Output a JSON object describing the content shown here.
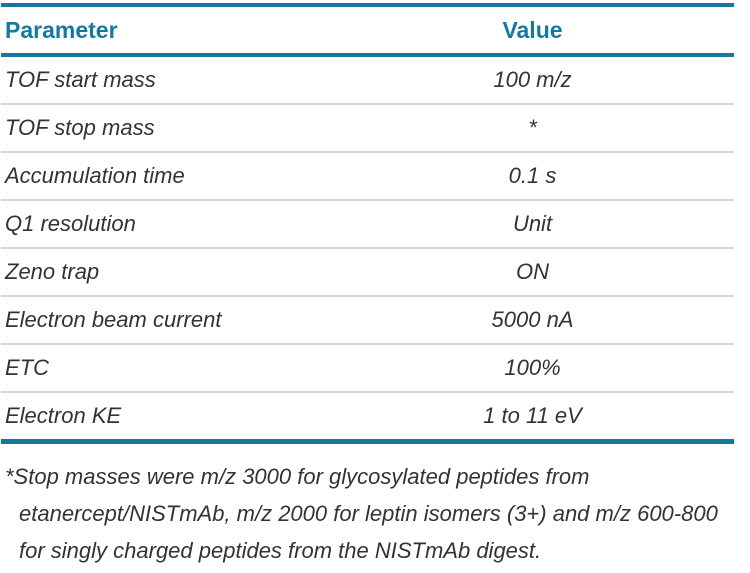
{
  "table": {
    "columns": [
      {
        "label": "Parameter"
      },
      {
        "label": "Value"
      }
    ],
    "rows": [
      {
        "parameter": "TOF start mass",
        "value": "100 m/z"
      },
      {
        "parameter": "TOF stop mass",
        "value": "*"
      },
      {
        "parameter": "Accumulation time",
        "value": "0.1 s"
      },
      {
        "parameter": "Q1 resolution",
        "value": "Unit"
      },
      {
        "parameter": "Zeno trap",
        "value": "ON"
      },
      {
        "parameter": "Electron beam current",
        "value": "5000 nA"
      },
      {
        "parameter": "ETC",
        "value": "100%"
      },
      {
        "parameter": "Electron KE",
        "value": "1 to 11 eV"
      }
    ]
  },
  "footnote": {
    "text": "*Stop masses were m/z 3000 for glycosylated peptides from etanercept/NISTmAb, m/z 2000 for leptin isomers (3+) and m/z 600-800 for singly charged peptides from the NISTmAb digest."
  },
  "colors": {
    "accent": "#1578A3",
    "separator": "#D8D8D8",
    "body_text": "#333333"
  }
}
